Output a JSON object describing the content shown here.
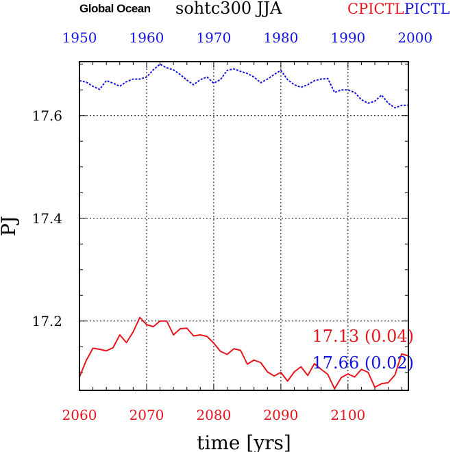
{
  "chart_data": {
    "type": "line",
    "title_left": "Global Ocean",
    "title_center": "sohtc300 JJA",
    "title_right_red": "CPICTL",
    "title_right_blue": "PICTL",
    "xlabel": "time [yrs]",
    "ylabel": "PJ",
    "xlim_bottom": [
      2060,
      2109
    ],
    "xlim_top": [
      1950,
      1999
    ],
    "ylim": [
      17.065,
      17.705
    ],
    "xticks_bottom": [
      2060,
      2070,
      2080,
      2090,
      2100
    ],
    "xticks_top": [
      1950,
      1960,
      1970,
      1980,
      1990,
      2000
    ],
    "yticks": [
      17.2,
      17.4,
      17.6
    ],
    "ytick_labels": [
      "17.2",
      "17.4",
      "17.6"
    ],
    "grid": true,
    "colors": {
      "red": "#e8141c",
      "blue": "#1414e0",
      "axis": "#000000"
    },
    "series": [
      {
        "name": "CPICTL",
        "color": "#e8141c",
        "dash": "solid",
        "axis": "bottom",
        "stats_label": "17.13 (0.04)",
        "x": [
          2060,
          2061,
          2062,
          2063,
          2064,
          2065,
          2066,
          2067,
          2068,
          2069,
          2070,
          2071,
          2072,
          2073,
          2074,
          2075,
          2076,
          2077,
          2078,
          2079,
          2080,
          2081,
          2082,
          2083,
          2084,
          2085,
          2086,
          2087,
          2088,
          2089,
          2090,
          2091,
          2092,
          2093,
          2094,
          2095,
          2096,
          2097,
          2098,
          2099,
          2100,
          2101,
          2102,
          2103,
          2104,
          2105,
          2106,
          2107,
          2108,
          2109
        ],
        "values": [
          17.091,
          17.123,
          17.147,
          17.145,
          17.142,
          17.148,
          17.173,
          17.158,
          17.179,
          17.207,
          17.193,
          17.189,
          17.2,
          17.2,
          17.173,
          17.185,
          17.186,
          17.171,
          17.173,
          17.17,
          17.157,
          17.141,
          17.135,
          17.146,
          17.143,
          17.116,
          17.124,
          17.119,
          17.101,
          17.093,
          17.1,
          17.083,
          17.101,
          17.111,
          17.094,
          17.117,
          17.106,
          17.096,
          17.068,
          17.09,
          17.097,
          17.091,
          17.106,
          17.1,
          17.071,
          17.078,
          17.08,
          17.095,
          17.136,
          17.132
        ]
      },
      {
        "name": "PICTL",
        "color": "#1414e0",
        "dash": "dotted",
        "axis": "top",
        "stats_label": "17.66 (0.02)",
        "x": [
          1950,
          1951,
          1952,
          1953,
          1954,
          1955,
          1956,
          1957,
          1958,
          1959,
          1960,
          1961,
          1962,
          1963,
          1964,
          1965,
          1966,
          1967,
          1968,
          1969,
          1970,
          1971,
          1972,
          1973,
          1974,
          1975,
          1976,
          1977,
          1978,
          1979,
          1980,
          1981,
          1982,
          1983,
          1984,
          1985,
          1986,
          1987,
          1988,
          1989,
          1990,
          1991,
          1992,
          1993,
          1994,
          1995,
          1996,
          1997,
          1998,
          1999
        ],
        "values": [
          17.668,
          17.665,
          17.657,
          17.651,
          17.668,
          17.663,
          17.657,
          17.666,
          17.671,
          17.671,
          17.675,
          17.689,
          17.7,
          17.693,
          17.689,
          17.68,
          17.669,
          17.66,
          17.67,
          17.675,
          17.663,
          17.67,
          17.688,
          17.691,
          17.686,
          17.682,
          17.675,
          17.664,
          17.671,
          17.68,
          17.688,
          17.67,
          17.66,
          17.655,
          17.66,
          17.668,
          17.671,
          17.672,
          17.645,
          17.65,
          17.65,
          17.645,
          17.631,
          17.624,
          17.628,
          17.64,
          17.624,
          17.615,
          17.62,
          17.62
        ]
      }
    ]
  }
}
